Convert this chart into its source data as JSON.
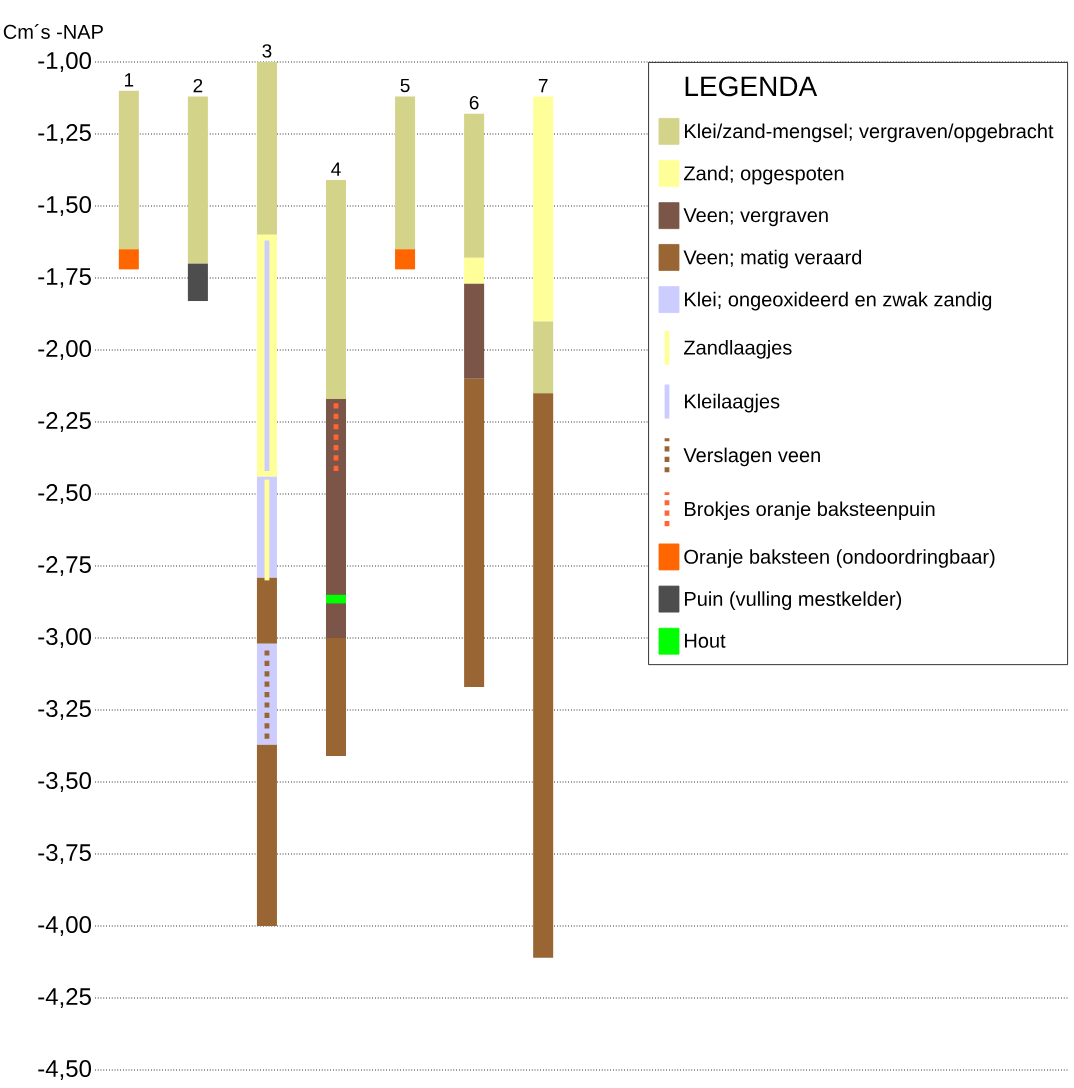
{
  "chart_data": {
    "type": "bar",
    "ylabel": "Cm´s -NAP",
    "legend_title": "LEGENDA",
    "legend": "top right",
    "grid": "y",
    "categories": [
      "1",
      "2",
      "3",
      "4",
      "5",
      "6",
      "7"
    ],
    "ylim": [
      -4.5,
      -1.0
    ],
    "yticks": [
      {
        "value": -1.0,
        "label": "-1,00"
      },
      {
        "value": -1.25,
        "label": "-1,25"
      },
      {
        "value": -1.5,
        "label": "-1,50"
      },
      {
        "value": -1.75,
        "label": "-1,75"
      },
      {
        "value": -2.0,
        "label": "-2,00"
      },
      {
        "value": -2.25,
        "label": "-2,25"
      },
      {
        "value": -2.5,
        "label": "-2,50"
      },
      {
        "value": -2.75,
        "label": "-2,75"
      },
      {
        "value": -3.0,
        "label": "-3,00"
      },
      {
        "value": -3.25,
        "label": "-3,25"
      },
      {
        "value": -3.5,
        "label": "-3,50"
      },
      {
        "value": -3.75,
        "label": "-3,75"
      },
      {
        "value": -4.0,
        "label": "-4,00"
      },
      {
        "value": -4.25,
        "label": "-4,25"
      },
      {
        "value": -4.5,
        "label": "-4,50"
      }
    ],
    "series": [
      {
        "name": "Klei/zand-mengsel; vergraven/opgebracht",
        "color": "#d4d38a",
        "base": [
          -1.65,
          -1.7,
          -1.6,
          -2.17,
          -1.65,
          -1.68,
          -2.15
        ],
        "values": [
          0.55,
          0.58,
          0.6,
          0.76,
          0.53,
          0.5,
          0.25
        ]
      },
      {
        "name": "Zand; opgespoten",
        "color": "#ffff99",
        "base": [
          null,
          null,
          -2.44,
          null,
          null,
          -1.77,
          -1.9
        ],
        "values": [
          null,
          null,
          0.84,
          null,
          null,
          0.09,
          0.78
        ]
      },
      {
        "name": "Veen; vergraven",
        "color": "#7a5548",
        "base": [
          null,
          null,
          null,
          -3.0,
          null,
          -2.1,
          null
        ],
        "values": [
          null,
          null,
          null,
          0.83,
          null,
          0.33,
          null
        ]
      },
      {
        "name": "Veen; matig veraard",
        "color": "#996633",
        "base": [
          null,
          null,
          -3.02,
          -3.41,
          null,
          -3.17,
          -4.11
        ],
        "values": [
          null,
          null,
          0.23,
          0.41,
          null,
          1.07,
          1.96
        ]
      },
      {
        "name": "Klei; ongeoxideerd en zwak zandig",
        "color": "#ccccff",
        "base": [
          null,
          null,
          -2.79,
          null,
          null,
          null,
          null
        ],
        "values": [
          null,
          null,
          0.35,
          null,
          null,
          null,
          null
        ]
      },
      {
        "name": "Zandlaagjes",
        "type": "line",
        "color": "#ffff99",
        "line_style": "solid",
        "x": [
          "3",
          "3"
        ],
        "values": [
          -2.8,
          -2.45
        ]
      },
      {
        "name": "Kleilaagjes",
        "type": "line",
        "color": "#ccccff",
        "line_style": "solid",
        "x": [
          "3",
          "3"
        ],
        "values": [
          -2.42,
          -1.62
        ]
      },
      {
        "name": "Verslagen veen",
        "type": "line",
        "color": "#996633",
        "line_style": "dotted",
        "x": [
          "3",
          "3"
        ],
        "values": [
          -3.35,
          -3.03
        ]
      },
      {
        "name": "Brokjes oranje baksteenpuin",
        "type": "line",
        "color": "#ff6633",
        "line_style": "dotted",
        "x": [
          "4",
          "4"
        ],
        "values": [
          -2.42,
          -2.18
        ]
      },
      {
        "name": "Oranje baksteen (ondoordringbaar)",
        "color": "#ff6600",
        "base": [
          -1.72,
          null,
          null,
          null,
          -1.72,
          null,
          null
        ],
        "values": [
          0.07,
          null,
          null,
          null,
          0.07,
          null,
          null
        ]
      },
      {
        "name": "Puin (vulling mestkelder)",
        "color": "#4d4d4d",
        "base": [
          null,
          -1.83,
          null,
          null,
          null,
          null,
          null
        ],
        "values": [
          null,
          0.13,
          null,
          null,
          null,
          null,
          null
        ]
      },
      {
        "name": "Hout",
        "color": "#00ff00",
        "base": [
          null,
          null,
          null,
          -2.88,
          null,
          null,
          null
        ],
        "values": [
          null,
          null,
          null,
          0.03,
          null,
          null,
          null
        ]
      },
      {
        "color": "#996633",
        "base": [
          null,
          null,
          -4.0,
          null,
          null,
          null,
          null
        ],
        "values": [
          null,
          null,
          0.63,
          null,
          null,
          null,
          null
        ]
      },
      {
        "color": "#ccccff",
        "base": [
          null,
          null,
          -3.37,
          null,
          null,
          null,
          null
        ],
        "values": [
          null,
          null,
          0.35,
          null,
          null,
          null,
          null
        ]
      }
    ]
  }
}
